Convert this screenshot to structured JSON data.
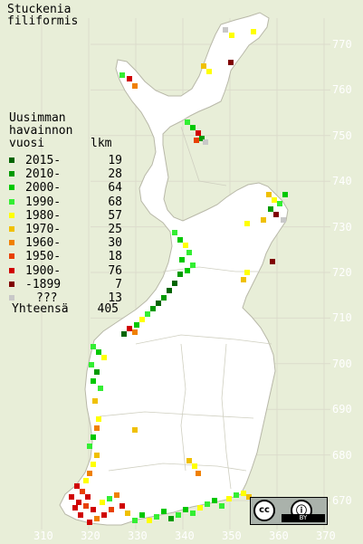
{
  "title": [
    "Stuckenia",
    "filiformis"
  ],
  "legend": {
    "heading": [
      "Uusimman",
      "havainnon",
      "vuosi"
    ],
    "count_heading": "lkm",
    "rows": [
      {
        "label": "2015-",
        "count": "19",
        "color": "#006400"
      },
      {
        "label": "2010-",
        "count": "28",
        "color": "#009a00"
      },
      {
        "label": "2000-",
        "count": "64",
        "color": "#00c800"
      },
      {
        "label": "1990-",
        "count": "68",
        "color": "#33ee33"
      },
      {
        "label": "1980-",
        "count": "57",
        "color": "#ffff00"
      },
      {
        "label": "1970-",
        "count": "25",
        "color": "#f0c000"
      },
      {
        "label": "1960-",
        "count": "30",
        "color": "#f08000"
      },
      {
        "label": "1950-",
        "count": "18",
        "color": "#e84000"
      },
      {
        "label": "1900-",
        "count": "76",
        "color": "#d00000"
      },
      {
        "label": "-1899",
        "count": "7",
        "color": "#800000"
      },
      {
        "label": "???",
        "count": "13",
        "color": "#c8c8c8"
      }
    ],
    "total_label": "Yhteensä",
    "total_count": "405"
  },
  "y_axis_labels": [
    "770",
    "760",
    "750",
    "740",
    "730",
    "720",
    "710",
    "700",
    "690",
    "680",
    "670"
  ],
  "x_axis_labels": [
    "310",
    "320",
    "330",
    "340",
    "350",
    "360",
    "370"
  ],
  "license_badge": {
    "cc": "cc",
    "by_icon": "ⓘ",
    "by_text": "BY"
  },
  "colors": {
    "background": "#e8eed8",
    "land": "#ffffff",
    "grid": "#dcdccc",
    "border": "#b8b8a8"
  }
}
